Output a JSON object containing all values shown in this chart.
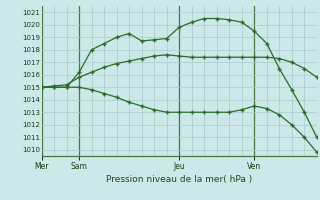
{
  "background_color": "#cce8e8",
  "grid_color": "#aacccc",
  "line_color": "#2d6a2d",
  "title": "Pression niveau de la mer( hPa )",
  "ylim": [
    1009.5,
    1021.5
  ],
  "yticks": [
    1010,
    1011,
    1012,
    1013,
    1014,
    1015,
    1016,
    1017,
    1018,
    1019,
    1020,
    1021
  ],
  "day_labels": [
    "Mer",
    "Sam",
    "Jeu",
    "Ven"
  ],
  "day_positions": [
    0,
    3,
    11,
    17
  ],
  "xlim": [
    0,
    22
  ],
  "num_points": 23,
  "series1_x": [
    0,
    1,
    2,
    3,
    4,
    5,
    6,
    7,
    8,
    9,
    10,
    11,
    12,
    13,
    14,
    15,
    16,
    17,
    18,
    19,
    20,
    21,
    22
  ],
  "series1_y": [
    1015.0,
    1015.1,
    1015.2,
    1015.8,
    1016.2,
    1016.6,
    1016.9,
    1017.1,
    1017.3,
    1017.5,
    1017.6,
    1017.5,
    1017.4,
    1017.4,
    1017.4,
    1017.4,
    1017.4,
    1017.4,
    1017.4,
    1017.3,
    1017.0,
    1016.5,
    1015.8
  ],
  "series2_x": [
    0,
    1,
    2,
    3,
    4,
    5,
    6,
    7,
    8,
    9,
    10,
    11,
    12,
    13,
    14,
    15,
    16,
    17,
    18,
    19,
    20,
    21,
    22
  ],
  "series2_y": [
    1015.0,
    1015.0,
    1015.0,
    1016.2,
    1018.0,
    1018.5,
    1019.0,
    1019.3,
    1018.7,
    1018.8,
    1018.9,
    1019.8,
    1020.2,
    1020.5,
    1020.5,
    1020.4,
    1020.2,
    1019.5,
    1018.5,
    1016.5,
    1014.8,
    1013.0,
    1011.0
  ],
  "series3_x": [
    0,
    1,
    2,
    3,
    4,
    5,
    6,
    7,
    8,
    9,
    10,
    11,
    12,
    13,
    14,
    15,
    16,
    17,
    18,
    19,
    20,
    21,
    22
  ],
  "series3_y": [
    1015.0,
    1015.0,
    1015.0,
    1015.0,
    1014.8,
    1014.5,
    1014.2,
    1013.8,
    1013.5,
    1013.2,
    1013.0,
    1013.0,
    1013.0,
    1013.0,
    1013.0,
    1013.0,
    1013.2,
    1013.5,
    1013.3,
    1012.8,
    1012.0,
    1011.0,
    1009.8
  ]
}
